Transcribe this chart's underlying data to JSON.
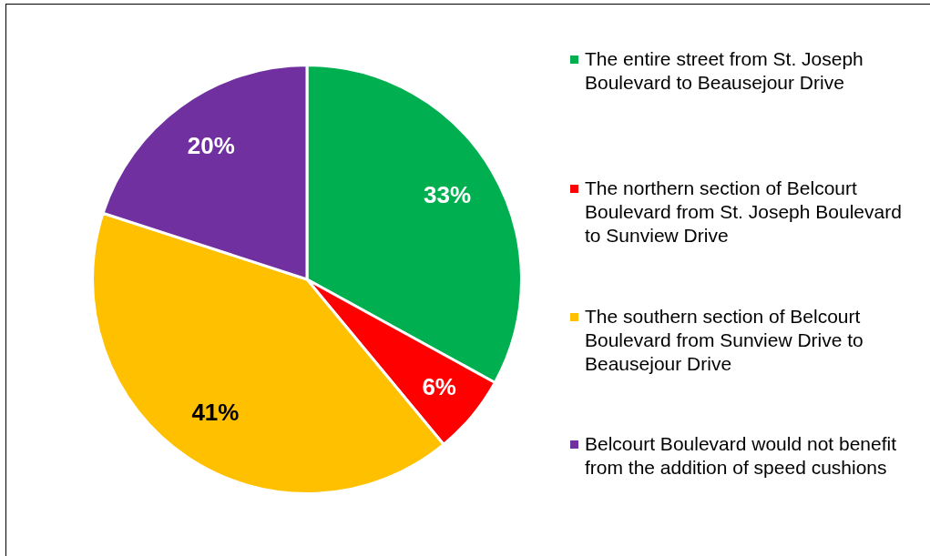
{
  "chart_data": {
    "type": "pie",
    "categories": [
      "The entire street from St. Joseph Boulevard to Beausejour Drive",
      "The northern section of Belcourt Boulevard from St. Joseph Boulevard to Sunview Drive",
      "The southern section of Belcourt Boulevard from Sunview Drive to Beausejour Drive",
      "Belcourt Boulevard would not benefit from the addition of speed cushions"
    ],
    "values": [
      33,
      6,
      41,
      20
    ],
    "colors": [
      "#00b050",
      "#ff0000",
      "#ffc000",
      "#7030a0"
    ],
    "value_labels": [
      "33%",
      "6%",
      "41%",
      "20%"
    ],
    "legend": "right"
  }
}
